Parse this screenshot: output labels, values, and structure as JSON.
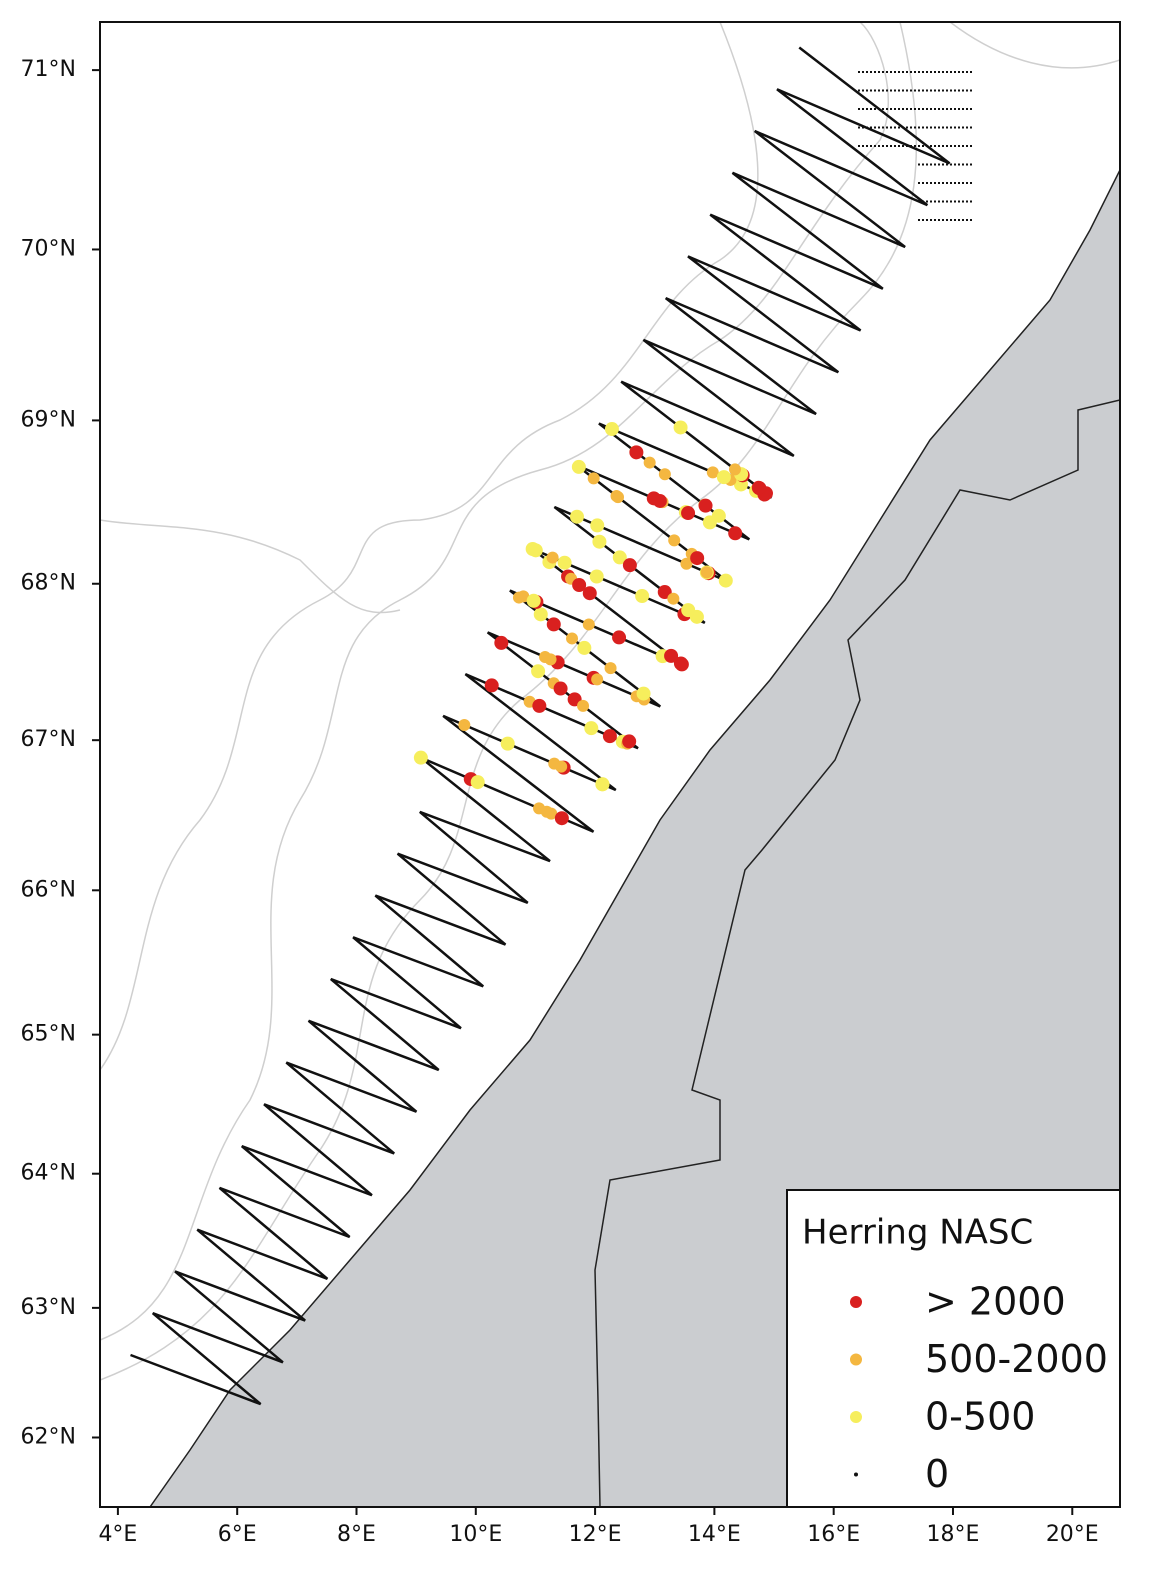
{
  "map": {
    "projection": "mercator",
    "xlim": [
      3.7,
      20.8
    ],
    "ylim": [
      61.45,
      71.26
    ],
    "xticks": [
      {
        "value": 4,
        "label": "4°E"
      },
      {
        "value": 6,
        "label": "6°E"
      },
      {
        "value": 8,
        "label": "8°E"
      },
      {
        "value": 10,
        "label": "10°E"
      },
      {
        "value": 12,
        "label": "12°E"
      },
      {
        "value": 14,
        "label": "14°E"
      },
      {
        "value": 16,
        "label": "16°E"
      },
      {
        "value": 18,
        "label": "18°E"
      },
      {
        "value": 20,
        "label": "20°E"
      }
    ],
    "yticks": [
      {
        "value": 62,
        "label": "62°N"
      },
      {
        "value": 63,
        "label": "63°N"
      },
      {
        "value": 64,
        "label": "64°N"
      },
      {
        "value": 65,
        "label": "65°N"
      },
      {
        "value": 66,
        "label": "66°N"
      },
      {
        "value": 67,
        "label": "67°N"
      },
      {
        "value": 68,
        "label": "68°N"
      },
      {
        "value": 69,
        "label": "69°N"
      },
      {
        "value": 70,
        "label": "70°N"
      },
      {
        "value": 71,
        "label": "71°N"
      }
    ],
    "legend": {
      "title": "Herring NASC",
      "items": [
        {
          "label": "> 2000",
          "color": "#d9201f"
        },
        {
          "label": "500-2000",
          "color": "#f4b740"
        },
        {
          "label": "0-500",
          "color": "#f6ee5c"
        },
        {
          "label": "0",
          "color": "#111111"
        }
      ]
    }
  }
}
